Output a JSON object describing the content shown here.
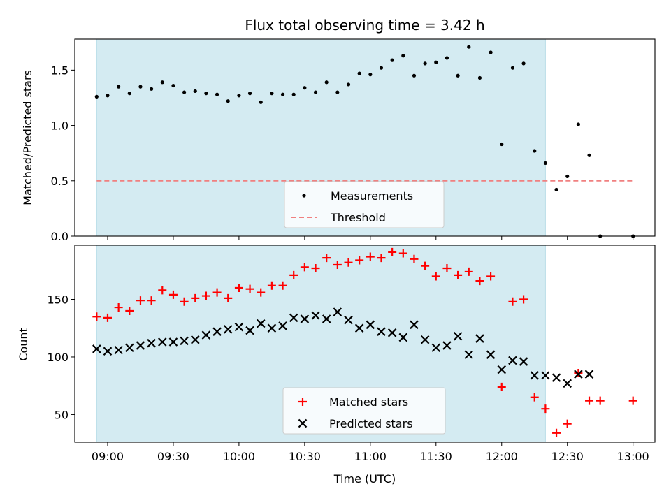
{
  "chart_data": [
    {
      "type": "scatter",
      "title": "Flux total observing time = 3.42 h",
      "xlabel": "",
      "ylabel": "Matched/Predicted stars",
      "ylim": [
        0,
        1.78
      ],
      "yticks": [
        "0.0",
        "0.5",
        "1.0",
        "1.5"
      ],
      "shaded_interval": [
        "08:55",
        "12:20"
      ],
      "shade_color": "#d4ebf2",
      "threshold": {
        "name": "Threshold",
        "value": 0.5,
        "x_range": [
          "08:55",
          "13:00"
        ],
        "color": "#f08080"
      },
      "series": [
        {
          "name": "Measurements",
          "color": "#000000",
          "marker": "dot",
          "x": [
            "08:55",
            "09:00",
            "09:05",
            "09:10",
            "09:15",
            "09:20",
            "09:25",
            "09:30",
            "09:35",
            "09:40",
            "09:45",
            "09:50",
            "09:55",
            "10:00",
            "10:05",
            "10:10",
            "10:15",
            "10:20",
            "10:25",
            "10:30",
            "10:35",
            "10:40",
            "10:45",
            "10:50",
            "10:55",
            "11:00",
            "11:05",
            "11:10",
            "11:15",
            "11:20",
            "11:25",
            "11:30",
            "11:35",
            "11:40",
            "11:45",
            "11:50",
            "11:55",
            "12:00",
            "12:05",
            "12:10",
            "12:15",
            "12:20",
            "12:25",
            "12:30",
            "12:35",
            "12:40",
            "12:45",
            "13:00"
          ],
          "y": [
            1.26,
            1.27,
            1.35,
            1.29,
            1.35,
            1.33,
            1.39,
            1.36,
            1.3,
            1.31,
            1.29,
            1.28,
            1.22,
            1.27,
            1.29,
            1.21,
            1.29,
            1.28,
            1.28,
            1.34,
            1.3,
            1.39,
            1.3,
            1.37,
            1.47,
            1.46,
            1.52,
            1.59,
            1.63,
            1.45,
            1.56,
            1.57,
            1.61,
            1.45,
            1.71,
            1.43,
            1.66,
            0.83,
            1.52,
            1.56,
            0.77,
            0.66,
            0.42,
            0.54,
            1.01,
            0.73,
            0.0,
            0.0
          ]
        }
      ],
      "legend": {
        "position": "lower-center",
        "entries": [
          "Measurements",
          "Threshold"
        ]
      }
    },
    {
      "type": "scatter",
      "title": "",
      "xlabel": "Time (UTC)",
      "ylabel": "Count",
      "ylim": [
        26,
        197
      ],
      "yticks": [
        "50",
        "100",
        "150"
      ],
      "xlim": [
        "08:45",
        "13:10"
      ],
      "xticks": [
        "09:00",
        "09:30",
        "10:00",
        "10:30",
        "11:00",
        "11:30",
        "12:00",
        "12:30",
        "13:00"
      ],
      "shaded_interval": [
        "08:55",
        "12:20"
      ],
      "shade_color": "#d4ebf2",
      "series": [
        {
          "name": "Matched stars",
          "color": "#ff0000",
          "marker": "plus",
          "x": [
            "08:55",
            "09:00",
            "09:05",
            "09:10",
            "09:15",
            "09:20",
            "09:25",
            "09:30",
            "09:35",
            "09:40",
            "09:45",
            "09:50",
            "09:55",
            "10:00",
            "10:05",
            "10:10",
            "10:15",
            "10:20",
            "10:25",
            "10:30",
            "10:35",
            "10:40",
            "10:45",
            "10:50",
            "10:55",
            "11:00",
            "11:05",
            "11:10",
            "11:15",
            "11:20",
            "11:25",
            "11:30",
            "11:35",
            "11:40",
            "11:45",
            "11:50",
            "11:55",
            "12:00",
            "12:05",
            "12:10",
            "12:15",
            "12:20",
            "12:25",
            "12:30",
            "12:35",
            "12:40",
            "12:45",
            "13:00"
          ],
          "y": [
            135,
            134,
            143,
            140,
            149,
            149,
            158,
            154,
            148,
            151,
            153,
            156,
            151,
            160,
            159,
            156,
            162,
            162,
            171,
            178,
            177,
            186,
            180,
            182,
            184,
            187,
            186,
            191,
            190,
            185,
            179,
            170,
            177,
            171,
            174,
            166,
            170,
            74,
            148,
            150,
            65,
            55,
            34,
            42,
            86,
            62,
            62,
            62
          ]
        },
        {
          "name": "Predicted stars",
          "color": "#000000",
          "marker": "x",
          "x": [
            "08:55",
            "09:00",
            "09:05",
            "09:10",
            "09:15",
            "09:20",
            "09:25",
            "09:30",
            "09:35",
            "09:40",
            "09:45",
            "09:50",
            "09:55",
            "10:00",
            "10:05",
            "10:10",
            "10:15",
            "10:20",
            "10:25",
            "10:30",
            "10:35",
            "10:40",
            "10:45",
            "10:50",
            "10:55",
            "11:00",
            "11:05",
            "11:10",
            "11:15",
            "11:20",
            "11:25",
            "11:30",
            "11:35",
            "11:40",
            "11:45",
            "11:50",
            "11:55",
            "12:00",
            "12:05",
            "12:10",
            "12:15",
            "12:20",
            "12:25",
            "12:30",
            "12:35",
            "12:40"
          ],
          "y": [
            107,
            105,
            106,
            108,
            110,
            112,
            113,
            113,
            114,
            115,
            119,
            122,
            124,
            126,
            123,
            129,
            125,
            127,
            134,
            133,
            136,
            133,
            139,
            132,
            125,
            128,
            122,
            121,
            117,
            128,
            115,
            108,
            110,
            118,
            102,
            116,
            102,
            89,
            97,
            96,
            84,
            84,
            82,
            77,
            85,
            85
          ]
        }
      ],
      "legend": {
        "position": "lower-center",
        "entries": [
          "Matched stars",
          "Predicted stars"
        ]
      }
    }
  ]
}
